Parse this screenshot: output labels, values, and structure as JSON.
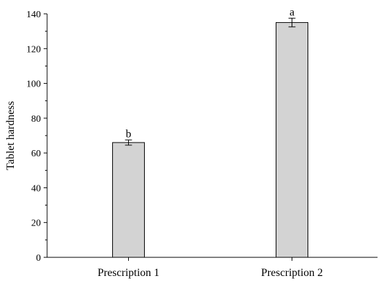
{
  "chart_data": {
    "type": "bar",
    "categories": [
      "Prescription 1",
      "Prescription 2"
    ],
    "values": [
      66,
      135
    ],
    "errors": [
      1.5,
      2.5
    ],
    "annotations": [
      "b",
      "a"
    ],
    "ylabel": "Tablet hardness",
    "xlabel": "",
    "ylim": [
      0,
      140
    ],
    "yticks": [
      0,
      20,
      40,
      60,
      80,
      100,
      120,
      140
    ],
    "grid": false,
    "bar_color": "#d3d3d3",
    "edge_color": "#000000"
  }
}
